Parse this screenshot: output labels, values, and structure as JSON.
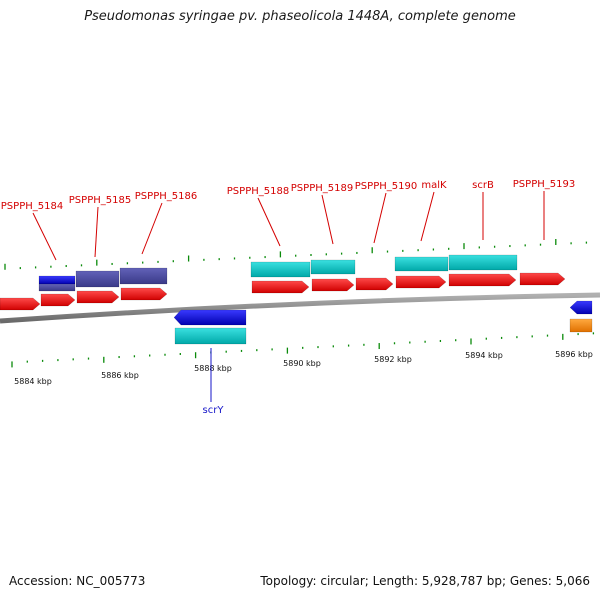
{
  "title": "Pseudomonas syringae pv. phaseolicola 1448A, complete genome",
  "footer": {
    "accession": "Accession: NC_005773",
    "summary": "Topology: circular; Length: 5,928,787 bp; Genes: 5,066"
  },
  "colors": {
    "cds": "#ff0000",
    "blue_feature": "#0000e6",
    "slate_feature": "#4a4aa0",
    "cyan_feature": "#00c8c8",
    "orange_feature": "#ff8c00",
    "backbone": "#8a8a8a",
    "tick": "#0a8a0a",
    "label_red": "#d40000",
    "label_blue": "#1515c8"
  },
  "scale_labels": [
    "5884 kbp",
    "5886 kbp",
    "5888 kbp",
    "5890 kbp",
    "5892 kbp",
    "5894 kbp",
    "5896 kbp"
  ],
  "gene_labels": [
    "PSPPH_5184",
    "PSPPH_5185",
    "PSPPH_5186",
    "PSPPH_5188",
    "PSPPH_5189",
    "PSPPH_5190",
    "malK",
    "scrB",
    "PSPPH_5193",
    "scrY"
  ]
}
